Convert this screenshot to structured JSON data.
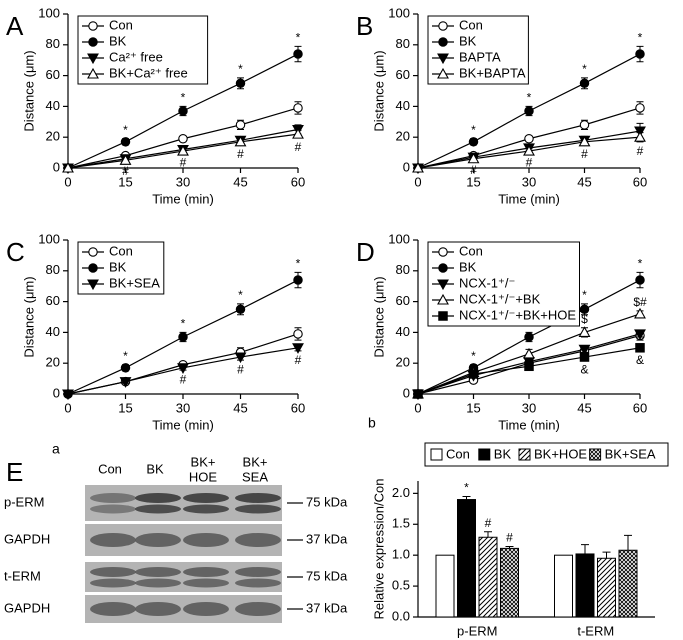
{
  "chart_data": [
    {
      "panel": "A",
      "type": "line",
      "xlabel": "Time (min)",
      "ylabel": "Distance (μm)",
      "x": [
        0,
        15,
        30,
        45,
        60
      ],
      "xlim": [
        0,
        60
      ],
      "xticks": [
        0,
        15,
        30,
        45,
        60
      ],
      "ylim": [
        0,
        100
      ],
      "yticks": [
        0,
        20,
        40,
        60,
        80,
        100
      ],
      "legend": "upper left",
      "series": [
        {
          "name": "Con",
          "color": "#000000",
          "marker": "circle-open",
          "values": [
            0,
            8,
            19,
            28,
            39
          ],
          "errors": [
            0,
            1,
            1.5,
            3,
            4
          ]
        },
        {
          "name": "BK",
          "color": "#000000",
          "marker": "circle-filled",
          "values": [
            0,
            17,
            37,
            55,
            74
          ],
          "errors": [
            0,
            2,
            3,
            3.5,
            5
          ],
          "significance": [
            null,
            "*",
            "*",
            "*",
            "*"
          ],
          "significance_side": "above"
        },
        {
          "name": "Ca²⁺ free",
          "color": "#000000",
          "marker": "triangle-down-filled",
          "values": [
            0,
            6,
            12,
            18,
            25
          ],
          "errors": [
            0,
            1,
            1.5,
            2,
            3
          ]
        },
        {
          "name": "BK+Ca²⁺ free",
          "color": "#000000",
          "marker": "triangle-up-open",
          "values": [
            0,
            5,
            11,
            17,
            22
          ],
          "errors": [
            0,
            1,
            1.5,
            2,
            2.5
          ],
          "significance": [
            null,
            "#",
            "#",
            "#",
            "#"
          ],
          "significance_side": "below"
        }
      ]
    },
    {
      "panel": "B",
      "type": "line",
      "xlabel": "Time (min)",
      "ylabel": "Distance (μm)",
      "x": [
        0,
        15,
        30,
        45,
        60
      ],
      "xlim": [
        0,
        60
      ],
      "xticks": [
        0,
        15,
        30,
        45,
        60
      ],
      "ylim": [
        0,
        100
      ],
      "yticks": [
        0,
        20,
        40,
        60,
        80,
        100
      ],
      "legend": "upper left",
      "series": [
        {
          "name": "Con",
          "color": "#000000",
          "marker": "circle-open",
          "values": [
            0,
            8,
            19,
            28,
            39
          ],
          "errors": [
            0,
            1,
            1.5,
            3,
            4
          ]
        },
        {
          "name": "BK",
          "color": "#000000",
          "marker": "circle-filled",
          "values": [
            0,
            17,
            37,
            55,
            74
          ],
          "errors": [
            0,
            2,
            3,
            3.5,
            5
          ],
          "significance": [
            null,
            "*",
            "*",
            "*",
            "*"
          ],
          "significance_side": "above"
        },
        {
          "name": "BAPTA",
          "color": "#000000",
          "marker": "triangle-down-filled",
          "values": [
            0,
            7,
            13,
            18,
            24
          ],
          "errors": [
            0,
            1,
            2,
            2.5,
            5
          ]
        },
        {
          "name": "BK+BAPTA",
          "color": "#000000",
          "marker": "triangle-up-open",
          "values": [
            0,
            6,
            11,
            17,
            20
          ],
          "errors": [
            0,
            1.5,
            1.5,
            2,
            3
          ],
          "significance": [
            null,
            "#",
            "#",
            "#",
            "#"
          ],
          "significance_side": "below"
        }
      ]
    },
    {
      "panel": "C",
      "type": "line",
      "xlabel": "Time (min)",
      "ylabel": "Distance (μm)",
      "x": [
        0,
        15,
        30,
        45,
        60
      ],
      "xlim": [
        0,
        60
      ],
      "xticks": [
        0,
        15,
        30,
        45,
        60
      ],
      "ylim": [
        0,
        100
      ],
      "yticks": [
        0,
        20,
        40,
        60,
        80,
        100
      ],
      "legend": "upper left",
      "series": [
        {
          "name": "Con",
          "color": "#000000",
          "marker": "circle-open",
          "values": [
            0,
            8,
            19,
            27,
            39
          ],
          "errors": [
            0,
            1,
            1.5,
            3,
            4
          ]
        },
        {
          "name": "BK",
          "color": "#000000",
          "marker": "circle-filled",
          "values": [
            0,
            17,
            37,
            55,
            74
          ],
          "errors": [
            0,
            2,
            3,
            3.5,
            5
          ],
          "significance": [
            null,
            "*",
            "*",
            "*",
            "*"
          ],
          "significance_side": "above"
        },
        {
          "name": "BK+SEA",
          "color": "#000000",
          "marker": "triangle-down-filled",
          "values": [
            0,
            8,
            17,
            24,
            30
          ],
          "errors": [
            0,
            1,
            1.5,
            2,
            2
          ],
          "significance": [
            null,
            null,
            "#",
            "#",
            "#"
          ],
          "significance_side": "below"
        }
      ]
    },
    {
      "panel": "D",
      "type": "line",
      "xlabel": "Time (min)",
      "ylabel": "Distance (μm)",
      "x": [
        0,
        15,
        30,
        45,
        60
      ],
      "xlim": [
        0,
        60
      ],
      "xticks": [
        0,
        15,
        30,
        45,
        60
      ],
      "ylim": [
        0,
        100
      ],
      "yticks": [
        0,
        20,
        40,
        60,
        80,
        100
      ],
      "legend": "upper left",
      "series": [
        {
          "name": "Con",
          "color": "#000000",
          "marker": "circle-open",
          "values": [
            0,
            9,
            20,
            28,
            38
          ],
          "errors": [
            0,
            1,
            1.5,
            2,
            3
          ]
        },
        {
          "name": "BK",
          "color": "#000000",
          "marker": "circle-filled",
          "values": [
            0,
            17,
            37,
            55,
            74
          ],
          "errors": [
            0,
            2,
            3,
            3.5,
            5
          ],
          "significance": [
            null,
            "*",
            "*",
            "*",
            "*"
          ],
          "significance_side": "above"
        },
        {
          "name": "NCX-1⁺/⁻",
          "color": "#000000",
          "marker": "triangle-down-filled",
          "values": [
            0,
            12,
            21,
            29,
            39
          ],
          "errors": [
            0,
            1,
            1.5,
            2,
            2
          ]
        },
        {
          "name": "NCX-1⁺/⁻+BK",
          "color": "#000000",
          "marker": "triangle-up-open",
          "values": [
            0,
            14,
            26,
            40,
            52
          ],
          "errors": [
            0,
            2,
            3,
            3,
            2
          ],
          "significance": [
            null,
            null,
            null,
            "$",
            "$#"
          ],
          "significance_side": "above"
        },
        {
          "name": "NCX-1⁺/⁻+BK+HOE",
          "color": "#000000",
          "marker": "square-filled",
          "values": [
            0,
            13,
            18,
            24,
            30
          ],
          "errors": [
            0,
            1,
            1.5,
            2,
            2
          ],
          "significance": [
            null,
            null,
            null,
            "&",
            "&"
          ],
          "significance_side": "below"
        }
      ]
    },
    {
      "panel": "b",
      "type": "bar",
      "ylabel": "Relative expression/Con",
      "categories": [
        "p-ERM",
        "t-ERM"
      ],
      "ylim": [
        0,
        2.2
      ],
      "yticks": [
        {
          "value": 0,
          "label": "0.0"
        },
        0.5,
        {
          "value": 1,
          "label": "1.0"
        },
        1.5,
        {
          "value": 2,
          "label": "2.0"
        }
      ],
      "legend": "top",
      "series": [
        {
          "name": "Con",
          "color": "#ffffff",
          "hatch": "none",
          "values": [
            1.0,
            1.0
          ],
          "errors": [
            0,
            0
          ]
        },
        {
          "name": "BK",
          "color": "#000000",
          "hatch": "none",
          "values": [
            1.9,
            1.02
          ],
          "errors": [
            0.05,
            0.15
          ],
          "significance": [
            "*",
            null
          ]
        },
        {
          "name": "BK+HOE",
          "color": "#ffffff",
          "hatch": "diagonal",
          "values": [
            1.29,
            0.95
          ],
          "errors": [
            0.09,
            0.1
          ],
          "significance": [
            "#",
            null
          ]
        },
        {
          "name": "BK+SEA",
          "color": "#ffffff",
          "hatch": "cross",
          "values": [
            1.11,
            1.08
          ],
          "errors": [
            0.03,
            0.24
          ],
          "significance": [
            "#",
            null
          ]
        }
      ]
    }
  ],
  "blot": {
    "panel": "E",
    "subpanel": "a",
    "lanes": [
      [
        "Con"
      ],
      [
        "BK"
      ],
      [
        "BK+",
        "HOE"
      ],
      [
        "BK+",
        "SEA"
      ]
    ],
    "rows": [
      {
        "label": "p-ERM",
        "size": "75 kDa"
      },
      {
        "label": "GAPDH",
        "size": "37 kDa"
      },
      {
        "label": "t-ERM",
        "size": "75 kDa"
      },
      {
        "label": "GAPDH",
        "size": "37 kDa"
      }
    ]
  }
}
